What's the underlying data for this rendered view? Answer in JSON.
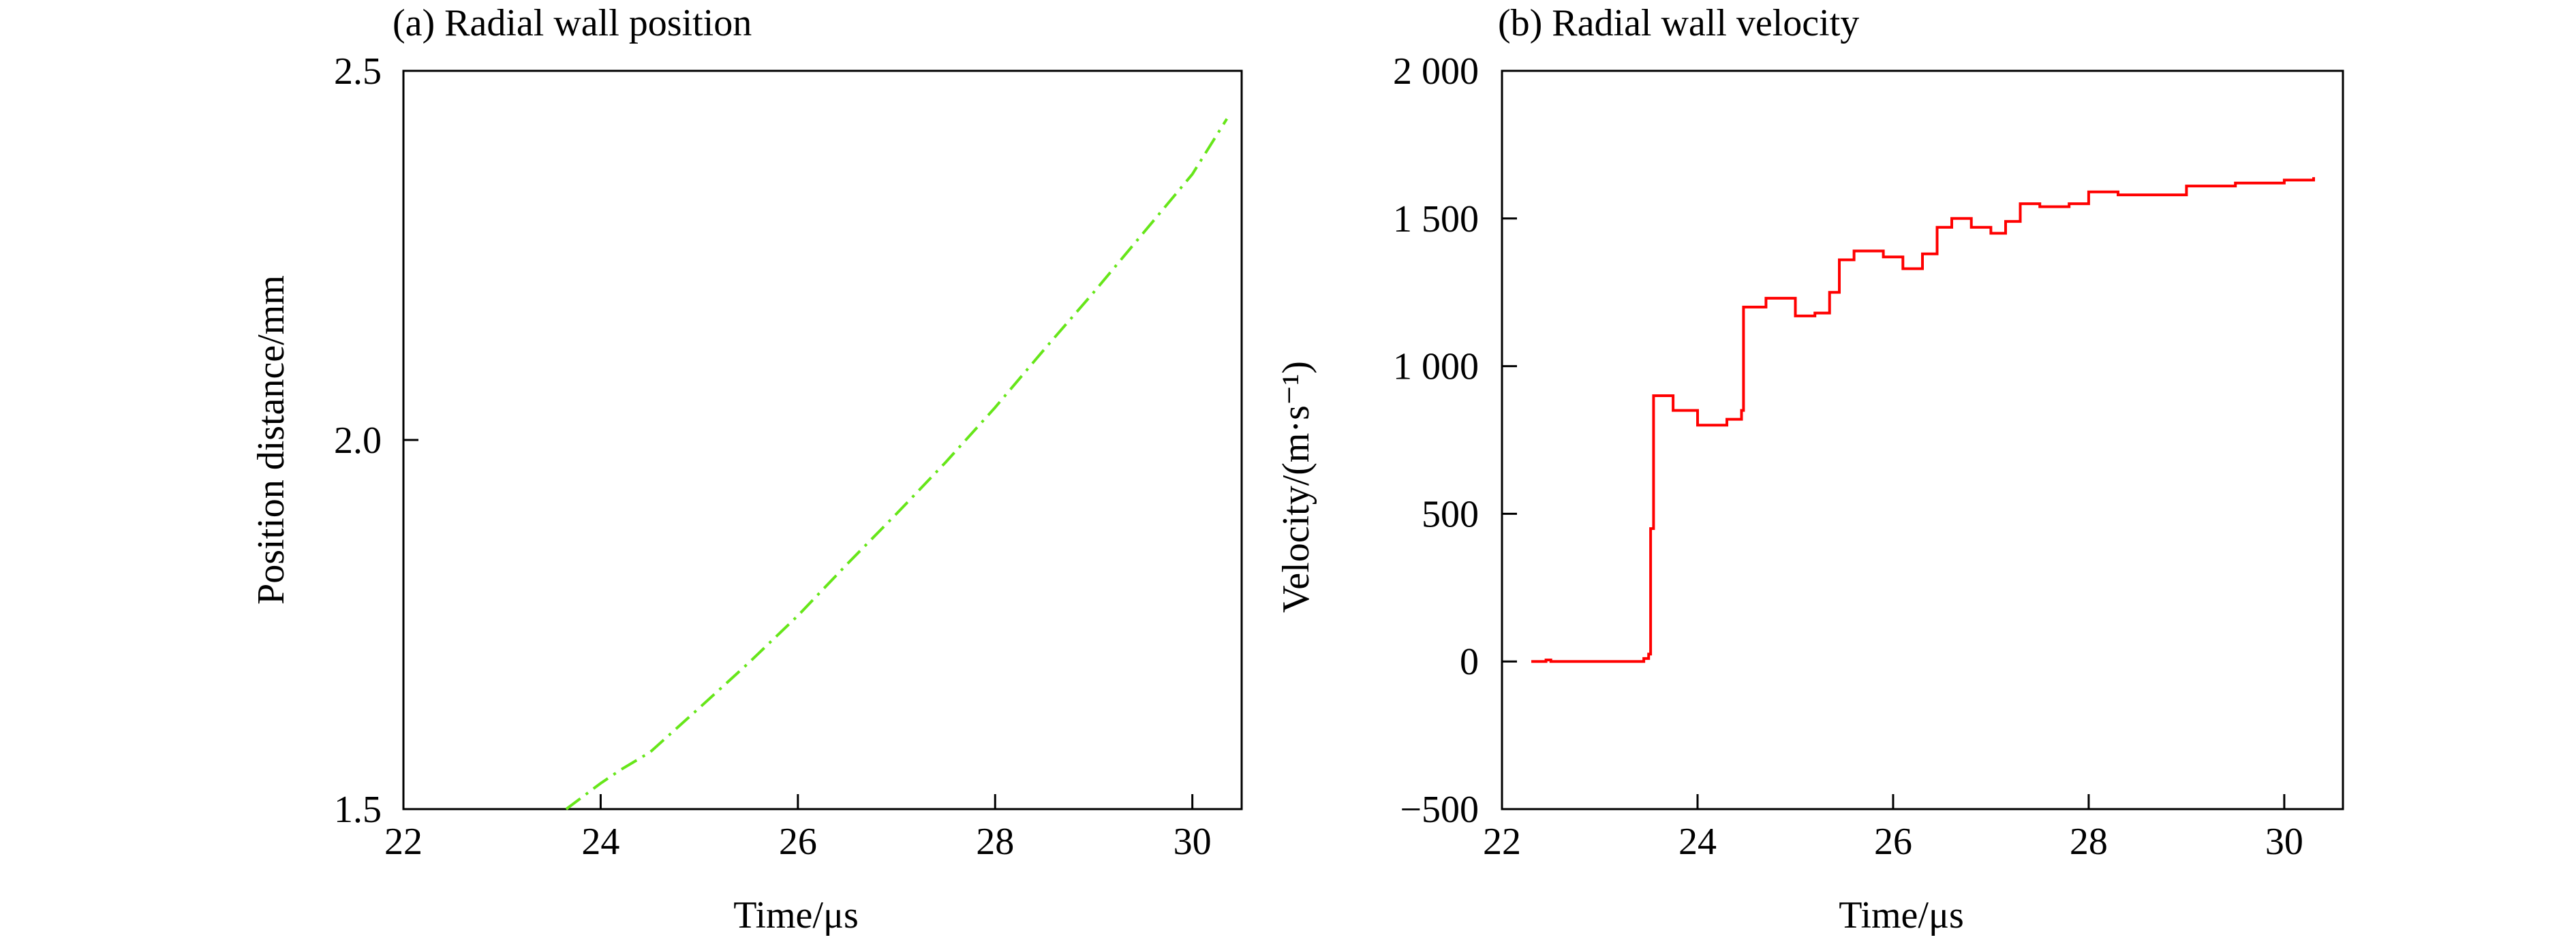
{
  "chart_data": [
    {
      "type": "line",
      "title": "(a) Radial wall position",
      "xlabel": "Time/μs",
      "ylabel": "Position distance/mm",
      "xlim": [
        22,
        30.5
      ],
      "ylim": [
        1.5,
        2.5
      ],
      "xticks": [
        22,
        24,
        26,
        28,
        30
      ],
      "xtick_labels": [
        "22",
        "24",
        "26",
        "28",
        "30"
      ],
      "yticks": [
        1.5,
        2.0,
        2.5
      ],
      "ytick_labels": [
        "1.5",
        "2.0",
        "2.5"
      ],
      "grid": false,
      "series": [
        {
          "line_style": "dash-dot",
          "color": "#66e619",
          "x": [
            23.65,
            24.0,
            24.2,
            24.5,
            25.0,
            25.5,
            26.0,
            26.5,
            27.0,
            27.5,
            28.0,
            28.5,
            29.0,
            29.5,
            30.0,
            30.35
          ],
          "y": [
            1.5,
            1.535,
            1.553,
            1.577,
            1.637,
            1.698,
            1.762,
            1.832,
            1.9,
            1.97,
            2.044,
            2.123,
            2.2,
            2.28,
            2.36,
            2.435
          ]
        }
      ]
    },
    {
      "type": "line",
      "title": "(b) Radial wall velocity",
      "xlabel": "Time/μs",
      "ylabel": "Velocity/(m·s⁻¹)",
      "xlim": [
        22,
        30.6
      ],
      "ylim": [
        -500,
        2000
      ],
      "xticks": [
        22,
        24,
        26,
        28,
        30
      ],
      "xtick_labels": [
        "22",
        "24",
        "26",
        "28",
        "30"
      ],
      "yticks": [
        -500,
        0,
        500,
        1000,
        1500,
        2000
      ],
      "ytick_labels": [
        "−500",
        "0",
        "500",
        "1 000",
        "1 500",
        "2 000"
      ],
      "grid": false,
      "series": [
        {
          "line_style": "solid",
          "color": "#ff0000",
          "x": [
            22.3,
            22.45,
            22.5,
            23.0,
            23.45,
            23.5,
            23.52,
            23.55,
            23.75,
            24.0,
            24.3,
            24.45,
            24.47,
            24.7,
            25.0,
            25.2,
            25.35,
            25.45,
            25.6,
            25.9,
            26.1,
            26.3,
            26.45,
            26.6,
            26.8,
            27.0,
            27.15,
            27.3,
            27.5,
            27.8,
            28.0,
            28.3,
            28.6,
            29.0,
            29.5,
            30.0,
            30.3
          ],
          "y": [
            0,
            5,
            0,
            0,
            10,
            25,
            450,
            900,
            850,
            800,
            820,
            850,
            1200,
            1230,
            1170,
            1180,
            1250,
            1360,
            1390,
            1370,
            1330,
            1380,
            1470,
            1500,
            1470,
            1450,
            1490,
            1550,
            1540,
            1550,
            1590,
            1580,
            1580,
            1610,
            1620,
            1630,
            1640
          ]
        }
      ]
    }
  ]
}
